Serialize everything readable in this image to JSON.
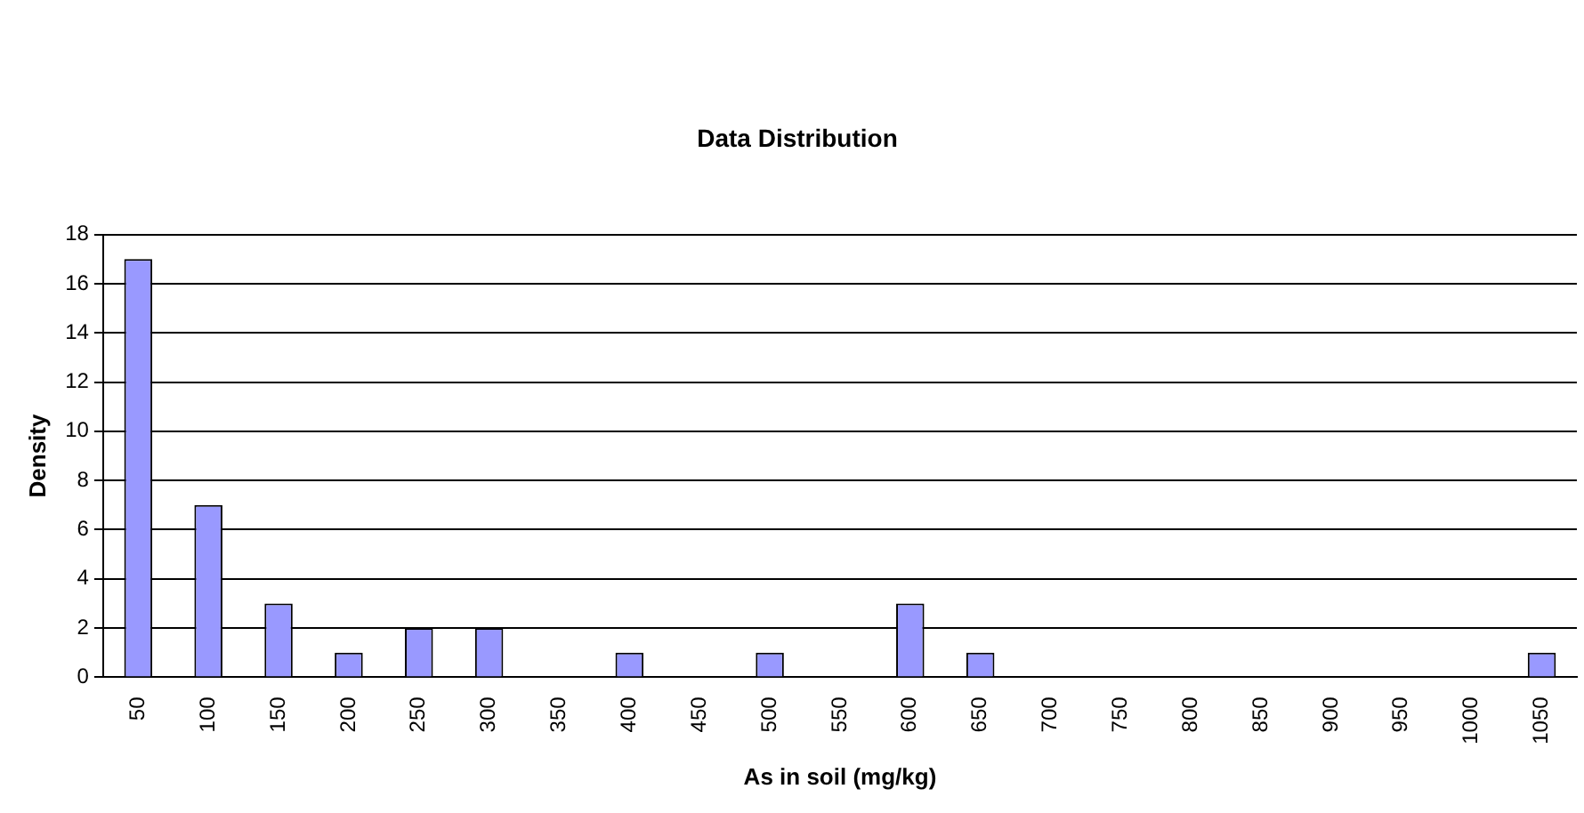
{
  "chart_data": {
    "type": "bar",
    "title": "Data Distribution",
    "xlabel": "As in soil (mg/kg)",
    "ylabel": "Density",
    "categories": [
      "50",
      "100",
      "150",
      "200",
      "250",
      "300",
      "350",
      "400",
      "450",
      "500",
      "550",
      "600",
      "650",
      "700",
      "750",
      "800",
      "850",
      "900",
      "950",
      "1000",
      "1050"
    ],
    "values": [
      17,
      7,
      3,
      1,
      2,
      2,
      0,
      1,
      0,
      1,
      0,
      3,
      1,
      0,
      0,
      0,
      0,
      0,
      0,
      0,
      1
    ],
    "color": "#9999ff",
    "ylim": [
      0,
      18
    ],
    "yticks": [
      0,
      2,
      4,
      6,
      8,
      10,
      12,
      14,
      16,
      18
    ],
    "grid": "y",
    "legend": false
  }
}
